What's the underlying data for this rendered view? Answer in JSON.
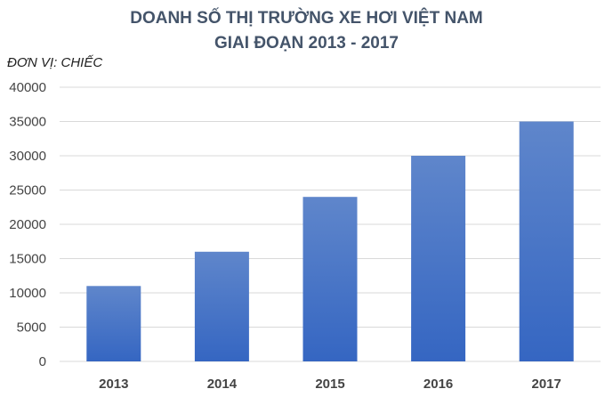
{
  "chart_data": {
    "type": "bar",
    "title": [
      "DOANH SỐ THỊ TRƯỜNG XE HƠI VIỆT NAM",
      "GIAI ĐOẠN 2013 - 2017"
    ],
    "unit_label": "ĐƠN VỊ: CHIẾC",
    "categories": [
      "2013",
      "2014",
      "2015",
      "2016",
      "2017"
    ],
    "values": [
      11000,
      16000,
      24000,
      30000,
      35000
    ],
    "ylim": [
      0,
      40000
    ],
    "yticks": [
      0,
      5000,
      10000,
      15000,
      20000,
      25000,
      30000,
      35000,
      40000
    ],
    "grid": true,
    "bar_color": "#4472c4",
    "xlabel": "",
    "ylabel": ""
  }
}
